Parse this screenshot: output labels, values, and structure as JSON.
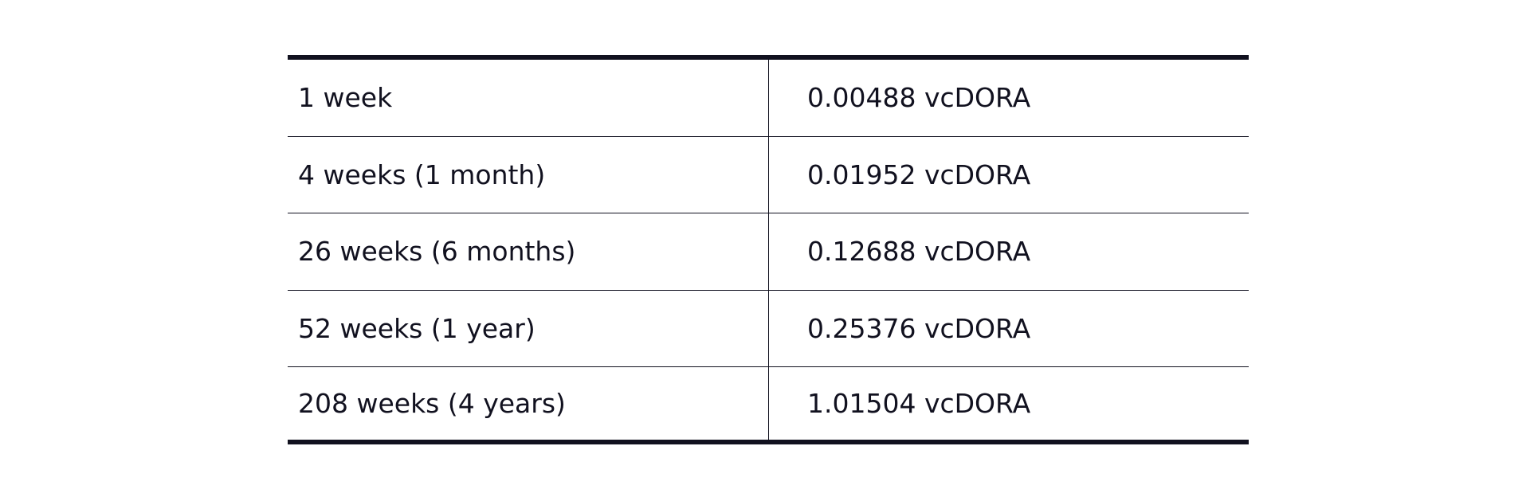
{
  "table": {
    "rows": [
      {
        "duration": "1 week",
        "amount": "0.00488 vcDORA"
      },
      {
        "duration": "4 weeks (1 month)",
        "amount": "0.01952 vcDORA"
      },
      {
        "duration": "26 weeks (6 months)",
        "amount": "0.12688 vcDORA"
      },
      {
        "duration": "52 weeks (1 year)",
        "amount": "0.25376 vcDORA"
      },
      {
        "duration": "208 weeks (4 years)",
        "amount": "1.01504 vcDORA"
      }
    ]
  },
  "colors": {
    "text": "#11111f",
    "rule": "#11111f",
    "background": "#ffffff"
  }
}
